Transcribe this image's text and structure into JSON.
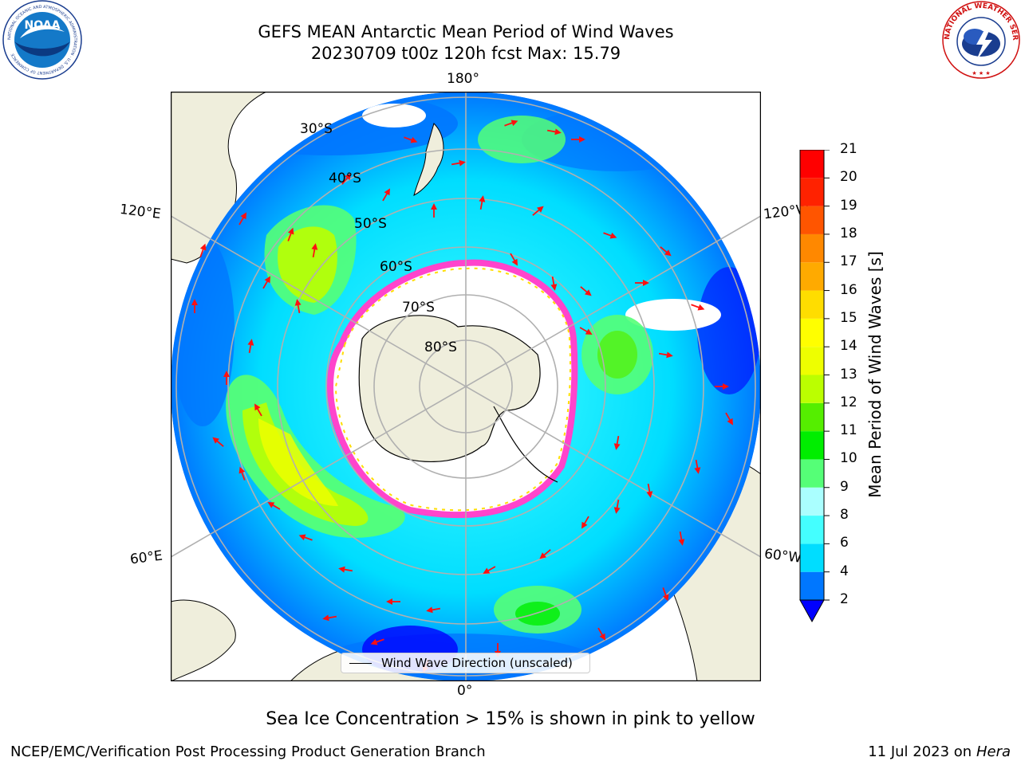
{
  "header": {
    "title_line1": "GEFS MEAN Antarctic Mean Period of Wind Waves",
    "title_line2": "20230709 t00z 120h fcst   Max: 15.79"
  },
  "logos": {
    "left": {
      "name": "noaa-logo",
      "text": "NOAA",
      "ring_text": "NATIONAL OCEANIC AND ATMOSPHERIC ADMINISTRATION · U.S. DEPARTMENT OF COMMERCE"
    },
    "right": {
      "name": "nws-logo",
      "ring_text": "NATIONAL WEATHER SERVICE"
    }
  },
  "map": {
    "projection": "south-polar-stereographic",
    "longitude_labels": {
      "top": "180°",
      "bottom": "0°",
      "upper_left": "120°E",
      "upper_right": "120°W",
      "lower_left": "60°E",
      "lower_right": "60°W"
    },
    "latitude_labels": [
      "30°S",
      "40°S",
      "50°S",
      "60°S",
      "70°S",
      "80°S"
    ],
    "max_value": 15.79,
    "legend_text": "Wind Wave Direction (unscaled)",
    "colors": {
      "land": "#efeedc",
      "ice_edge": "#ff44cc",
      "gridline": "#b0b0b0",
      "arrow": "#ff1010"
    }
  },
  "colorbar": {
    "label": "Mean Period of Wind Waves [s]",
    "ticks": [
      "2",
      "4",
      "6",
      "8",
      "9",
      "10",
      "11",
      "12",
      "13",
      "14",
      "15",
      "16",
      "17",
      "18",
      "19",
      "20",
      "21"
    ],
    "colors": [
      "#0077ff",
      "#00ddff",
      "#44ffff",
      "#aaffff",
      "#55ff77",
      "#00ee00",
      "#55ee00",
      "#bbff00",
      "#eeff00",
      "#ffff00",
      "#ffdd00",
      "#ffaa00",
      "#ff8800",
      "#ff5500",
      "#ff2200",
      "#ff0000"
    ],
    "extend_color": "#0000ff"
  },
  "subtitle": "Sea Ice Concentration > 15% is shown in pink to yellow",
  "footer": {
    "left": "NCEP/EMC/Verification Post Processing Product Generation Branch",
    "right_prefix": "11 Jul 2023 on ",
    "right_host": "Hera"
  }
}
